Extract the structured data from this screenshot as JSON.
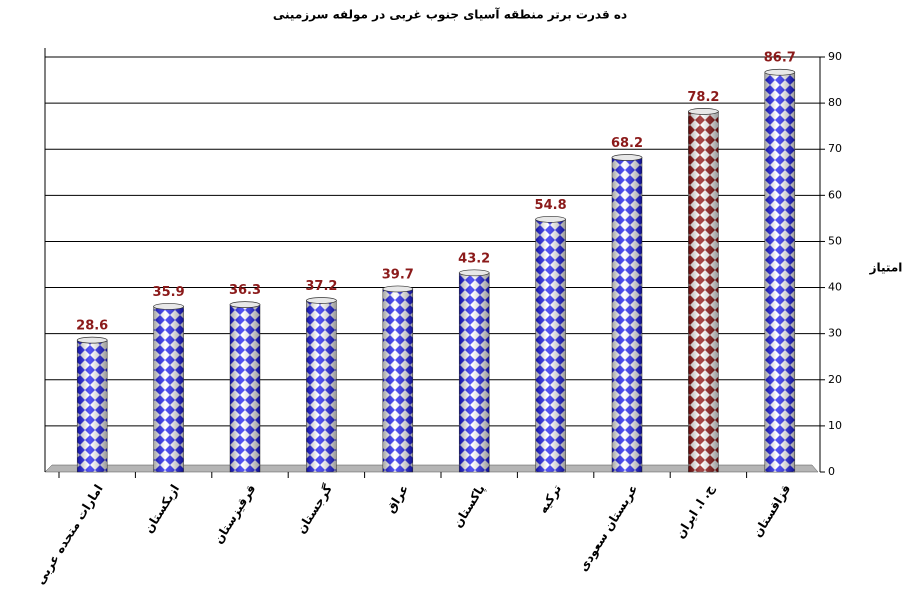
{
  "chart_data": {
    "type": "bar",
    "title": "ده قدرت برتر منطقه آسیای جنوب غربی در مولفه  سرزمینی",
    "y_axis_label": "امتیاز",
    "categories": [
      "امارات متحده عربی",
      "ازبکستان",
      "قرقیزستان",
      "گرجستان",
      "عراق",
      "پاکستان",
      "ترکیه",
      "عربستان سعودی",
      "ج. ا. ایران",
      "قزاقستان"
    ],
    "values": [
      28.6,
      35.9,
      36.3,
      37.2,
      39.7,
      43.2,
      54.8,
      68.2,
      78.2,
      86.7
    ],
    "colors": [
      "#1c1cf0",
      "#1c1cf0",
      "#1c1cf0",
      "#1c1cf0",
      "#1c1cf0",
      "#1c1cf0",
      "#1c1cf0",
      "#1c1cf0",
      "#8b0a0a",
      "#1c1cf0"
    ],
    "ylim": [
      0,
      90
    ],
    "yticks": [
      0,
      10,
      20,
      30,
      40,
      50,
      60,
      70,
      80,
      90
    ],
    "grid": true
  }
}
